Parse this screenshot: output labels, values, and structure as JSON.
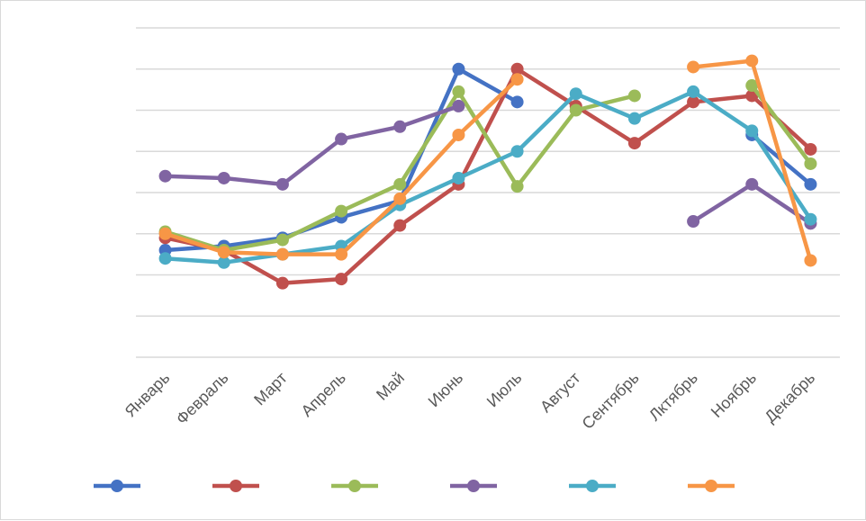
{
  "chart_data": {
    "type": "line",
    "title": "",
    "xlabel": "",
    "ylabel": "",
    "ylim": [
      0,
      8
    ],
    "grid": true,
    "legend_position": "bottom",
    "categories": [
      "Январь",
      "Февраль",
      "Март",
      "Апрель",
      "Май",
      "Июнь",
      "Июль",
      "Август",
      "Сентябрь",
      "Лктябрь",
      "Ноябрь",
      "Декабрь"
    ],
    "series": [
      {
        "color": "#4472C4",
        "values": [
          2.6,
          2.7,
          2.9,
          3.4,
          3.8,
          7.0,
          6.2,
          null,
          null,
          null,
          5.4,
          4.2
        ]
      },
      {
        "color": "#C0504D",
        "values": [
          2.9,
          2.6,
          1.8,
          1.9,
          3.2,
          4.2,
          7.0,
          6.1,
          5.2,
          6.2,
          6.35,
          5.05
        ]
      },
      {
        "color": "#9BBB59",
        "values": [
          3.05,
          2.6,
          2.85,
          3.55,
          4.2,
          6.45,
          4.15,
          6.0,
          6.35,
          null,
          6.6,
          4.7
        ]
      },
      {
        "color": "#8064A2",
        "values": [
          4.4,
          4.35,
          4.2,
          5.3,
          5.6,
          6.1,
          null,
          null,
          null,
          3.3,
          4.2,
          3.25
        ]
      },
      {
        "color": "#4BACC6",
        "values": [
          2.4,
          2.3,
          2.5,
          2.7,
          3.7,
          4.35,
          5.0,
          6.4,
          5.8,
          6.45,
          5.5,
          3.35
        ]
      },
      {
        "color": "#F79646",
        "values": [
          3.0,
          2.55,
          2.5,
          2.5,
          3.85,
          5.4,
          6.75,
          null,
          null,
          7.05,
          7.2,
          2.35
        ]
      }
    ]
  }
}
